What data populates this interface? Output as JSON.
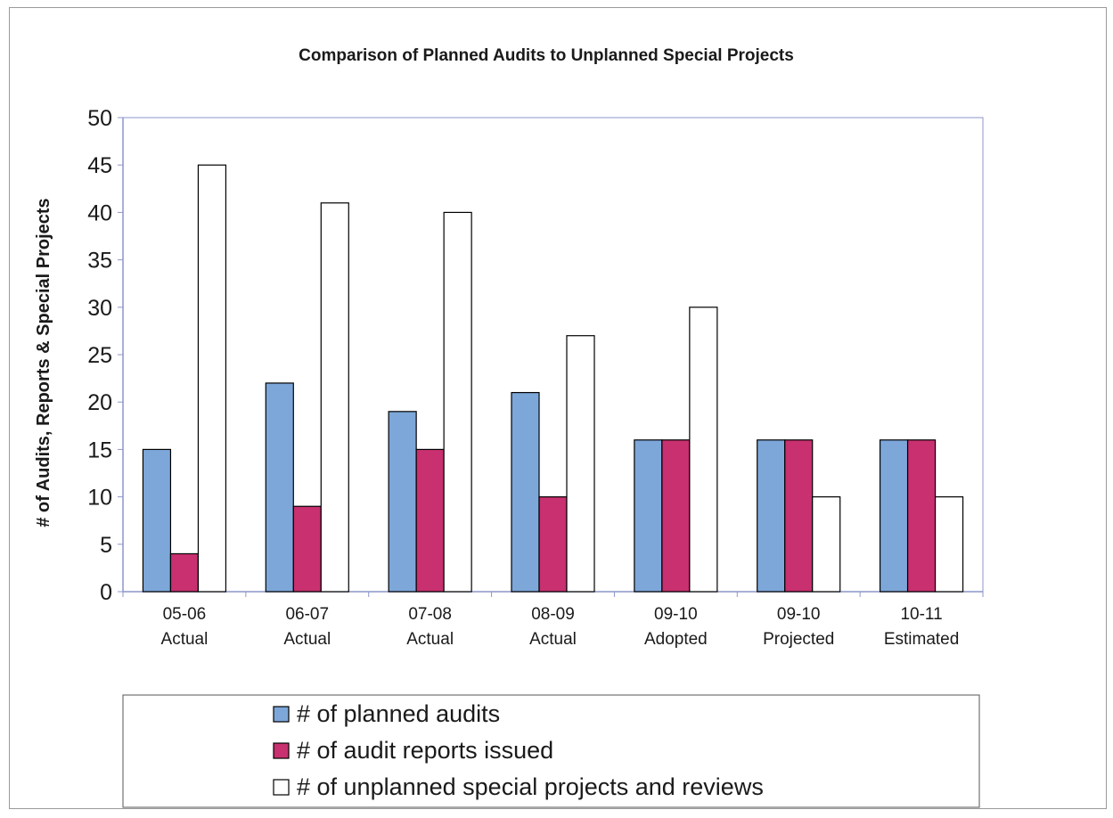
{
  "chart_data": {
    "type": "bar",
    "title": "Comparison of Planned Audits to Unplanned Special Projects",
    "ylabel": "# of Audits, Reports & Special Projects",
    "xlabel": "",
    "ylim": [
      0,
      50
    ],
    "yticks": [
      0,
      5,
      10,
      15,
      20,
      25,
      30,
      35,
      40,
      45,
      50
    ],
    "grid": false,
    "legend_position": "bottom",
    "categories": [
      [
        "05-06",
        "Actual"
      ],
      [
        "06-07",
        "Actual"
      ],
      [
        "07-08",
        "Actual"
      ],
      [
        "08-09",
        "Actual"
      ],
      [
        "09-10",
        "Adopted"
      ],
      [
        "09-10",
        "Projected"
      ],
      [
        "10-11",
        "Estimated"
      ]
    ],
    "series": [
      {
        "name": "# of planned audits",
        "color": "#7da7d9",
        "values": [
          15,
          22,
          19,
          21,
          16,
          16,
          16
        ]
      },
      {
        "name": "# of audit reports issued",
        "color": "#c8306f",
        "values": [
          4,
          9,
          15,
          10,
          16,
          16,
          16
        ]
      },
      {
        "name": "# of unplanned special projects and reviews",
        "color": "#ffffff",
        "values": [
          45,
          41,
          40,
          27,
          30,
          10,
          10
        ]
      }
    ],
    "axis_color": "#8c96c8",
    "bar_stroke": "#000000"
  }
}
